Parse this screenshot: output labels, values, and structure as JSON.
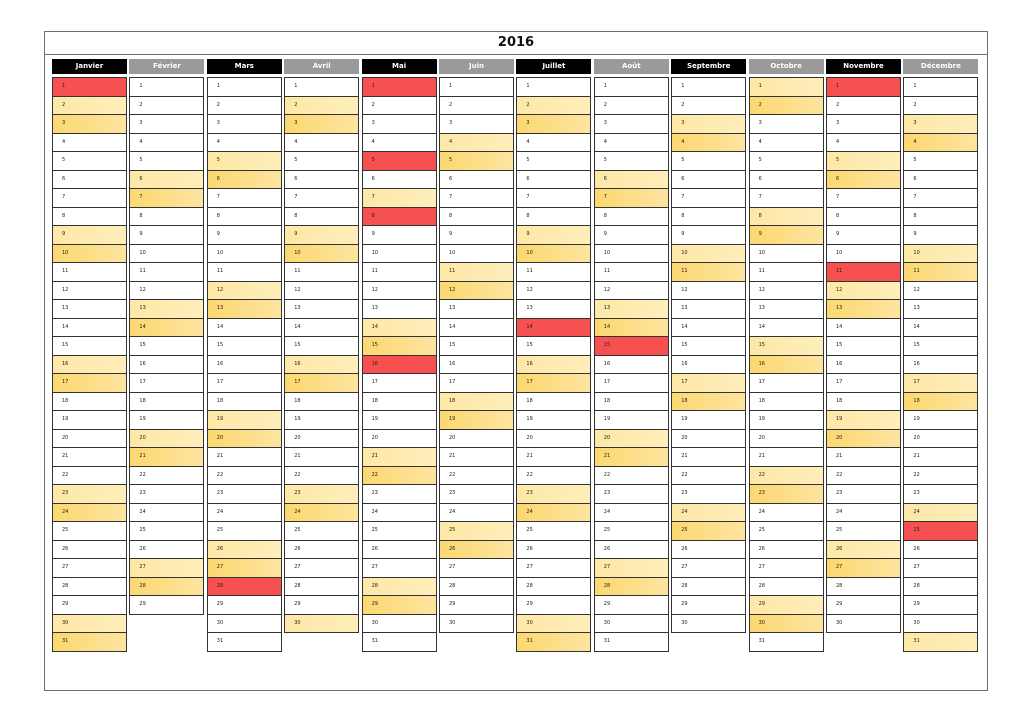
{
  "year": "2016",
  "months": [
    {
      "name": "Janvier",
      "tone": "dark",
      "days": 31,
      "holidays": [
        1
      ],
      "weekend_start": 2
    },
    {
      "name": "Février",
      "tone": "light",
      "days": 29,
      "holidays": [],
      "weekend_start": 6
    },
    {
      "name": "Mars",
      "tone": "dark",
      "days": 31,
      "holidays": [
        28
      ],
      "weekend_start": 5
    },
    {
      "name": "Avril",
      "tone": "light",
      "days": 30,
      "holidays": [],
      "weekend_start": 2
    },
    {
      "name": "Mai",
      "tone": "dark",
      "days": 31,
      "holidays": [
        1,
        5,
        8,
        16
      ],
      "weekend_start": 7
    },
    {
      "name": "Juin",
      "tone": "light",
      "days": 30,
      "holidays": [],
      "weekend_start": 4
    },
    {
      "name": "Juillet",
      "tone": "dark",
      "days": 31,
      "holidays": [
        14
      ],
      "weekend_start": 2
    },
    {
      "name": "Août",
      "tone": "light",
      "days": 31,
      "holidays": [
        15
      ],
      "weekend_start": 6
    },
    {
      "name": "Septembre",
      "tone": "dark",
      "days": 30,
      "holidays": [],
      "weekend_start": 3
    },
    {
      "name": "Octobre",
      "tone": "light",
      "days": 31,
      "holidays": [],
      "weekend_start": 1
    },
    {
      "name": "Novembre",
      "tone": "dark",
      "days": 30,
      "holidays": [
        1,
        11
      ],
      "weekend_start": 5
    },
    {
      "name": "Décembre",
      "tone": "light",
      "days": 31,
      "holidays": [
        25
      ],
      "weekend_start": 3
    }
  ],
  "colors": {
    "saturday": "#fde8a6",
    "sunday": "#fcd870",
    "holiday": "#f65050",
    "header_dark": "#000000",
    "header_light": "#9a9a9a"
  }
}
